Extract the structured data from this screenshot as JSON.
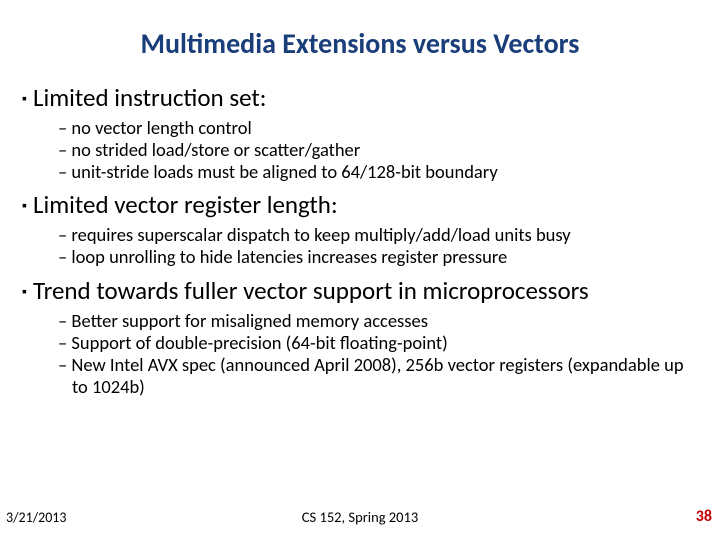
{
  "title": "Multimedia Extensions versus Vectors",
  "sections": [
    {
      "heading": "Limited instruction set:",
      "items": [
        "no vector length control",
        "no strided load/store or scatter/gather",
        "unit-stride loads must be aligned to 64/128-bit boundary"
      ]
    },
    {
      "heading": "Limited vector register length:",
      "items": [
        "requires superscalar dispatch to keep multiply/add/load units busy",
        "loop unrolling to hide latencies increases register pressure"
      ]
    },
    {
      "heading": "Trend towards fuller vector support in microprocessors",
      "items": [
        "Better support for misaligned memory accesses",
        "Support of double-precision (64-bit floating-point)",
        "New Intel AVX spec (announced April 2008), 256b vector registers (expandable up to 1024b)"
      ]
    }
  ],
  "footer": {
    "date": "3/21/2013",
    "center": "CS 152, Spring 2013",
    "page": "38"
  },
  "colors": {
    "title": "#1a3e7a",
    "page_number": "#c00000",
    "background": "#ffffff",
    "text": "#000000"
  },
  "fonts": {
    "title_size_pt": 28,
    "heading_size_pt": 25,
    "sub_size_pt": 18.5,
    "footer_size_pt": 14
  }
}
